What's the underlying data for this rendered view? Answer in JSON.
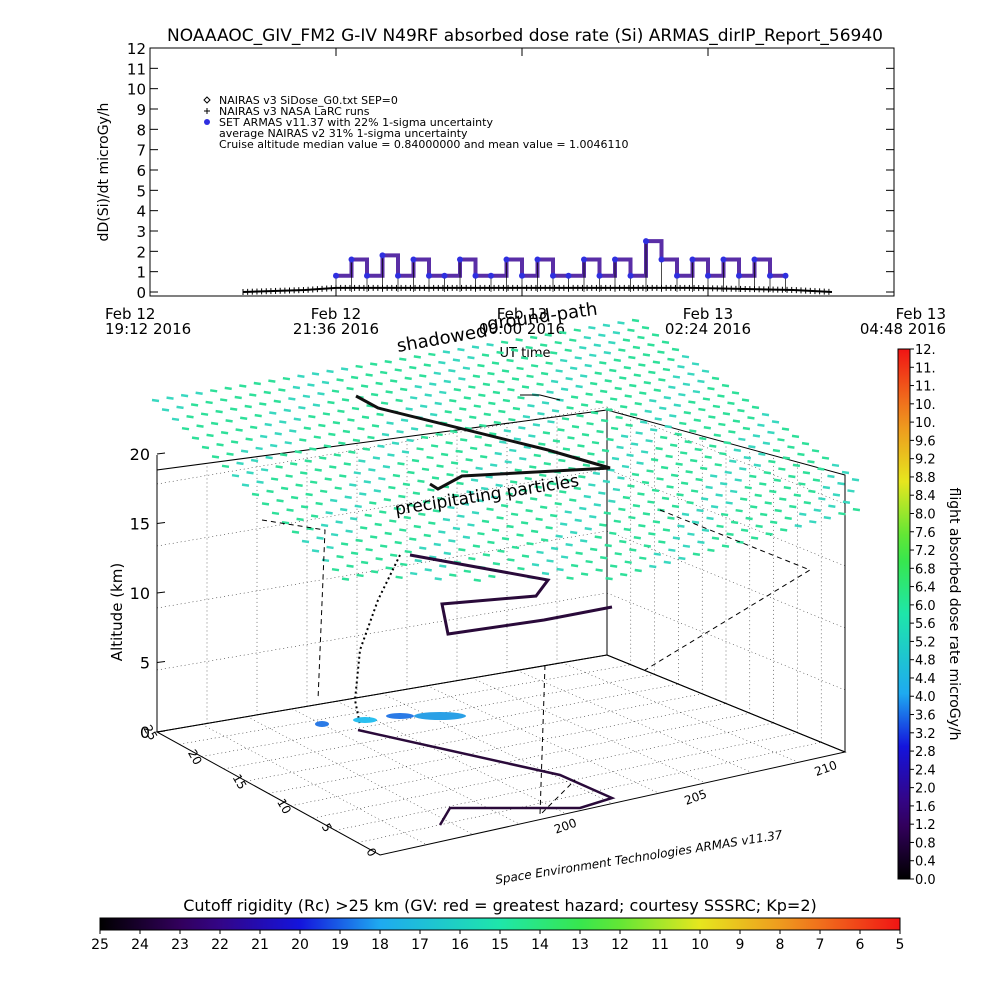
{
  "title": "NOAAAOC_GIV_FM2 G-IV   N49RF  absorbed dose rate (Si) ARMAS_dirIP_Report_56940",
  "colors": {
    "armas_points": "#5a2ea6",
    "armas_dot": "#2f2fe0",
    "nairas_line": "#000000",
    "track": "#2a0a3a",
    "grid": "#000000",
    "overlay": "#2fe0a0"
  },
  "chart_data": [
    {
      "type": "scatter",
      "name": "time_series",
      "ylabel": "dD(Si)/dt microGy/h",
      "xlabel": "UT time",
      "ylim": [
        0,
        12
      ],
      "yticks": [
        "0",
        "1",
        "2",
        "3",
        "4",
        "5",
        "6",
        "7",
        "8",
        "9",
        "10",
        "11",
        "12"
      ],
      "xticks": [
        {
          "line1": "Feb 12",
          "line2": "19:12 2016"
        },
        {
          "line1": "Feb 12",
          "line2": "21:36 2016"
        },
        {
          "line1": "Feb 13",
          "line2": "00:00 2016"
        },
        {
          "line1": "Feb 13",
          "line2": "02:24 2016"
        },
        {
          "line1": "Feb 13",
          "line2": "04:48 2016"
        }
      ],
      "xlim_hours": [
        0,
        9.6
      ],
      "legend": [
        {
          "symbol": "diamond",
          "text": "NAIRAS v3 SiDose_G0.txt SEP=0"
        },
        {
          "symbol": "plus",
          "text": "NAIRAS v3 NASA LaRC runs"
        },
        {
          "symbol": "dot",
          "text": "SET ARMAS v11.37 with 22% 1-sigma uncertainty"
        },
        {
          "symbol": "none",
          "text": "average NAIRAS v2 31% 1-sigma uncertainty"
        },
        {
          "symbol": "none",
          "text": "Cruise altitude median value = 0.84000000 and mean value = 1.0046110"
        }
      ],
      "armas_hours": [
        2.4,
        2.6,
        2.8,
        3.0,
        3.2,
        3.4,
        3.6,
        3.8,
        4.0,
        4.2,
        4.4,
        4.6,
        4.8,
        5.0,
        5.2,
        5.4,
        5.6,
        5.8,
        6.0,
        6.2,
        6.4,
        6.6,
        6.8,
        7.0,
        7.2,
        7.4,
        7.6,
        7.8,
        8.0,
        8.2
      ],
      "armas_values": [
        0.8,
        1.6,
        0.8,
        1.8,
        0.8,
        1.6,
        0.8,
        0.8,
        1.6,
        0.8,
        0.8,
        1.6,
        0.8,
        1.6,
        0.8,
        0.8,
        1.6,
        0.8,
        1.6,
        0.8,
        2.5,
        1.6,
        0.8,
        1.6,
        0.8,
        1.6,
        0.8,
        1.6,
        0.8,
        0.8
      ],
      "nairas_hours": [
        1.2,
        2.0,
        2.4,
        4.0,
        7.0,
        8.3,
        8.8
      ],
      "nairas_values": [
        0.0,
        0.1,
        0.2,
        0.2,
        0.2,
        0.1,
        0.0
      ],
      "annotations": [
        "shadowed",
        "ground-path"
      ]
    },
    {
      "type": "line",
      "name": "flight_3d",
      "zlabel": "Altitude (km)",
      "zticks": [
        "0",
        "5",
        "10",
        "15",
        "20"
      ],
      "lat_ticks": [
        "0",
        "5",
        "10",
        "15",
        "20",
        "25"
      ],
      "lon_ticks": [
        "200",
        "205",
        "210"
      ],
      "credit": "Space Environment Technologies ARMAS v11.37",
      "annotations": [
        "precipitating particles"
      ]
    },
    {
      "type": "heatmap",
      "name": "dose_colorbar",
      "label": "flight absorbed dose rate microGy/h",
      "ticks": [
        "0.0",
        "0.4",
        "0.8",
        "1.2",
        "1.6",
        "2.0",
        "2.4",
        "2.8",
        "3.2",
        "3.6",
        "4.0",
        "4.4",
        "4.8",
        "5.2",
        "5.6",
        "6.0",
        "6.4",
        "6.8",
        "7.2",
        "7.6",
        "8.0",
        "8.4",
        "8.8",
        "9.2",
        "9.6",
        "10.",
        "10.",
        "11.",
        "11.",
        "12."
      ]
    },
    {
      "type": "heatmap",
      "name": "cutoff_colorbar",
      "label": "Cutoff rigidity (Rc) >25 km (GV: red = greatest hazard; courtesy SSSRC; Kp=2)",
      "ticks": [
        "25",
        "24",
        "23",
        "22",
        "21",
        "20",
        "19",
        "18",
        "17",
        "16",
        "15",
        "14",
        "13",
        "12",
        "11",
        "10",
        "9",
        "8",
        "7",
        "6",
        "5"
      ]
    }
  ]
}
